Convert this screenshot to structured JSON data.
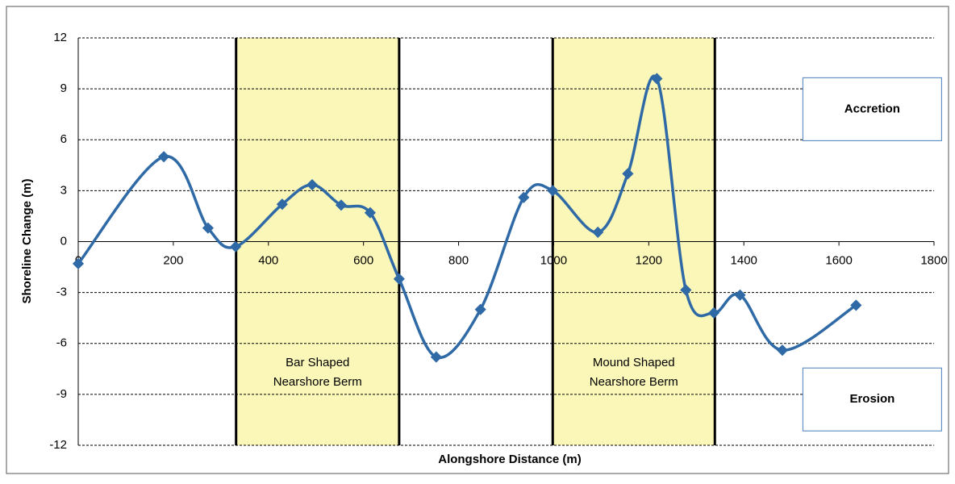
{
  "chart_data": {
    "type": "line",
    "xlabel": "Alongshore Distance (m)",
    "ylabel": "Shoreline Change (m)",
    "x": [
      0,
      180,
      273,
      331,
      429,
      492,
      553,
      614,
      675,
      753,
      846,
      937,
      998,
      1093,
      1156,
      1217,
      1278,
      1337,
      1392,
      1481,
      1636
    ],
    "series": [
      {
        "color": "#2f6aa6",
        "values": [
          -1.3,
          5.0,
          0.8,
          -0.3,
          2.2,
          3.35,
          2.15,
          1.7,
          -2.2,
          -6.8,
          -4.0,
          2.6,
          3.0,
          0.55,
          4.0,
          9.6,
          -2.85,
          -4.2,
          -3.15,
          -6.4,
          -3.75
        ]
      }
    ],
    "xlim": [
      0,
      1800
    ],
    "ylim": [
      -12,
      12
    ],
    "xticks": [
      0,
      200,
      400,
      600,
      800,
      1000,
      1200,
      1400,
      1600,
      1800
    ],
    "yticks": [
      -12,
      -9,
      -6,
      -3,
      0,
      3,
      6,
      9,
      12
    ],
    "grid": true,
    "regions": [
      {
        "x": [
          332,
          675
        ],
        "label": [
          "Bar Shaped",
          "Nearshore Berm"
        ],
        "color": "#fbf7b8"
      },
      {
        "x": [
          998,
          1339
        ],
        "label": [
          "Mound Shaped",
          "Nearshore Berm"
        ],
        "color": "#fbf7b8"
      }
    ],
    "annotations": [
      {
        "text": "Accretion",
        "x": 1670,
        "y": 7.8
      },
      {
        "text": "Erosion",
        "x": 1670,
        "y": -9.3
      }
    ]
  }
}
